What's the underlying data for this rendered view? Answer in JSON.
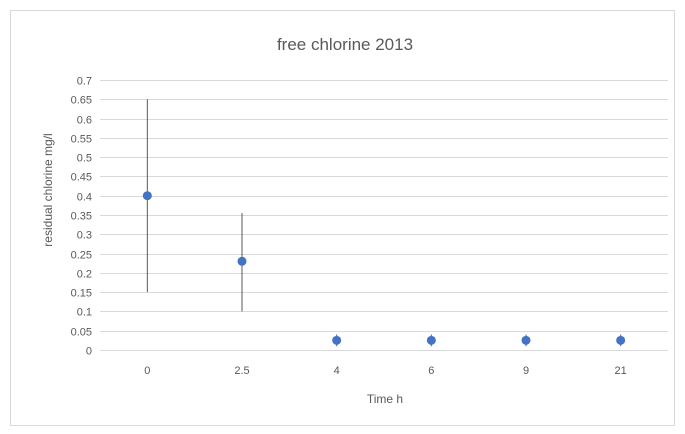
{
  "chart_data": {
    "type": "scatter",
    "title": "free chlorine  2013",
    "xlabel": "Time h",
    "ylabel": "residual chlorine  mg/l",
    "categories": [
      "0",
      "2.5",
      "4",
      "6",
      "9",
      "21"
    ],
    "values": [
      0.4,
      0.23,
      0.025,
      0.025,
      0.025,
      0.025
    ],
    "error_low": [
      0.15,
      0.1,
      0.01,
      0.01,
      0.01,
      0.01
    ],
    "error_high": [
      0.65,
      0.355,
      0.04,
      0.04,
      0.04,
      0.04
    ],
    "ylim": [
      0,
      0.7
    ],
    "yticks": [
      "0",
      "0.05",
      "0.1",
      "0.15",
      "0.2",
      "0.25",
      "0.3",
      "0.35",
      "0.4",
      "0.45",
      "0.5",
      "0.55",
      "0.6",
      "0.65",
      "0.7"
    ],
    "grid": true,
    "legend": "none",
    "colors": {
      "marker": "#4472c4",
      "error_bar": "#595959",
      "grid": "#d9d9d9",
      "text": "#595959",
      "frame": "#d9d9d9"
    }
  }
}
